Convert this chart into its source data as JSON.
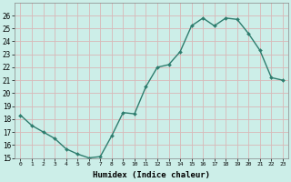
{
  "x": [
    0,
    1,
    2,
    3,
    4,
    5,
    6,
    7,
    8,
    9,
    10,
    11,
    12,
    13,
    14,
    15,
    16,
    17,
    18,
    19,
    20,
    21,
    22,
    23
  ],
  "y": [
    18.3,
    17.5,
    17.0,
    16.5,
    15.7,
    15.3,
    15.0,
    15.1,
    16.7,
    18.5,
    18.4,
    20.5,
    22.0,
    22.2,
    23.2,
    25.2,
    25.8,
    25.2,
    25.8,
    25.7,
    24.6,
    23.3,
    21.2,
    21.0
  ],
  "line_color": "#2e7d6e",
  "marker": "D",
  "marker_size": 2.0,
  "line_width": 1.0,
  "xlabel": "Humidex (Indice chaleur)",
  "ylim": [
    15,
    27
  ],
  "xlim": [
    -0.5,
    23.5
  ],
  "yticks": [
    15,
    16,
    17,
    18,
    19,
    20,
    21,
    22,
    23,
    24,
    25,
    26
  ],
  "xticks": [
    0,
    1,
    2,
    3,
    4,
    5,
    6,
    7,
    8,
    9,
    10,
    11,
    12,
    13,
    14,
    15,
    16,
    17,
    18,
    19,
    20,
    21,
    22,
    23
  ],
  "xtick_labels": [
    "0",
    "1",
    "2",
    "3",
    "4",
    "5",
    "6",
    "7",
    "8",
    "9",
    "10",
    "11",
    "12",
    "13",
    "14",
    "15",
    "16",
    "17",
    "18",
    "19",
    "20",
    "21",
    "22",
    "23"
  ],
  "bg_color": "#cceee8",
  "grid_color": "#d8b8b8"
}
